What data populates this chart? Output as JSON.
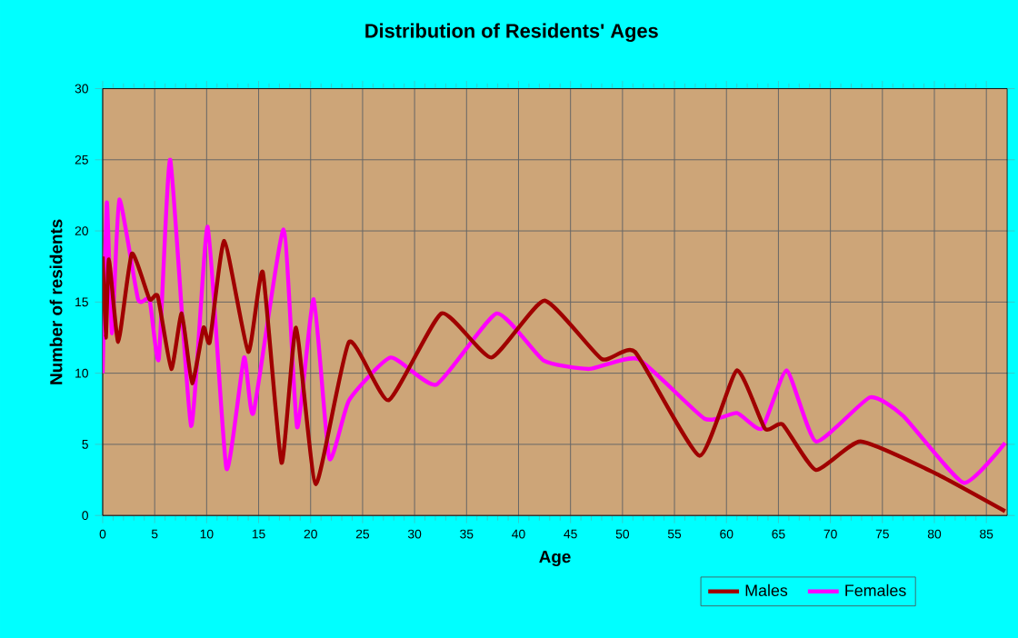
{
  "chart_data": {
    "type": "line",
    "title": "Distribution of Residents' Ages",
    "xlabel": "Age",
    "ylabel": "Number of residents",
    "xlim": [
      0,
      87
    ],
    "xticks": [
      0,
      5,
      10,
      15,
      20,
      25,
      30,
      35,
      40,
      45,
      50,
      55,
      60,
      65,
      70,
      75,
      80,
      85
    ],
    "ylim": [
      0,
      30
    ],
    "yticks": [
      0,
      5,
      10,
      15,
      20,
      25,
      30
    ],
    "grid": true,
    "legend": "bottom right",
    "marker": "none",
    "line_style": "solid",
    "series": [
      {
        "name": "Males",
        "color": "#a00000",
        "x": [
          0,
          0.3,
          0.6,
          1.5,
          2.8,
          4.5,
          5.3,
          6.6,
          7.6,
          8.6,
          9.7,
          10.3,
          11.7,
          14.0,
          15.4,
          17.2,
          18.6,
          20.5,
          23.7,
          27.5,
          32.6,
          37.4,
          42.5,
          48,
          51.2,
          57.4,
          61,
          63.7,
          65.4,
          68.6,
          72.9,
          80,
          86.8
        ],
        "values": [
          18.2,
          12.5,
          18,
          12.2,
          18.4,
          15.2,
          15.4,
          10.3,
          14.2,
          9.3,
          13.2,
          12.2,
          19.3,
          11.5,
          17.1,
          3.7,
          13.2,
          2.2,
          12.2,
          8.1,
          14.2,
          11.1,
          15.1,
          11,
          11.5,
          4.2,
          10.2,
          6.1,
          6.4,
          3.2,
          5.2,
          3,
          0.3
        ]
      },
      {
        "name": "Females",
        "color": "#ff00ff",
        "x": [
          0,
          0.4,
          0.9,
          1.6,
          3.4,
          4.5,
          5.4,
          6.5,
          8.5,
          10.1,
          11.9,
          13.6,
          14.5,
          17.4,
          18.7,
          20.3,
          21.8,
          23.7,
          27.7,
          32.1,
          37.9,
          42.4,
          46.8,
          51.5,
          57.9,
          61,
          63.4,
          65.8,
          68.6,
          73.8,
          77,
          82.8,
          86.8
        ],
        "values": [
          10,
          22,
          12.8,
          22.2,
          15.2,
          15.2,
          11,
          25,
          6.3,
          20.3,
          3.3,
          11.1,
          7.2,
          20.1,
          6.2,
          15.2,
          4,
          8.1,
          11.1,
          9.2,
          14.2,
          10.9,
          10.3,
          11,
          6.8,
          7.2,
          6.1,
          10.2,
          5.2,
          8.3,
          7,
          2.3,
          5.1
        ]
      }
    ]
  }
}
